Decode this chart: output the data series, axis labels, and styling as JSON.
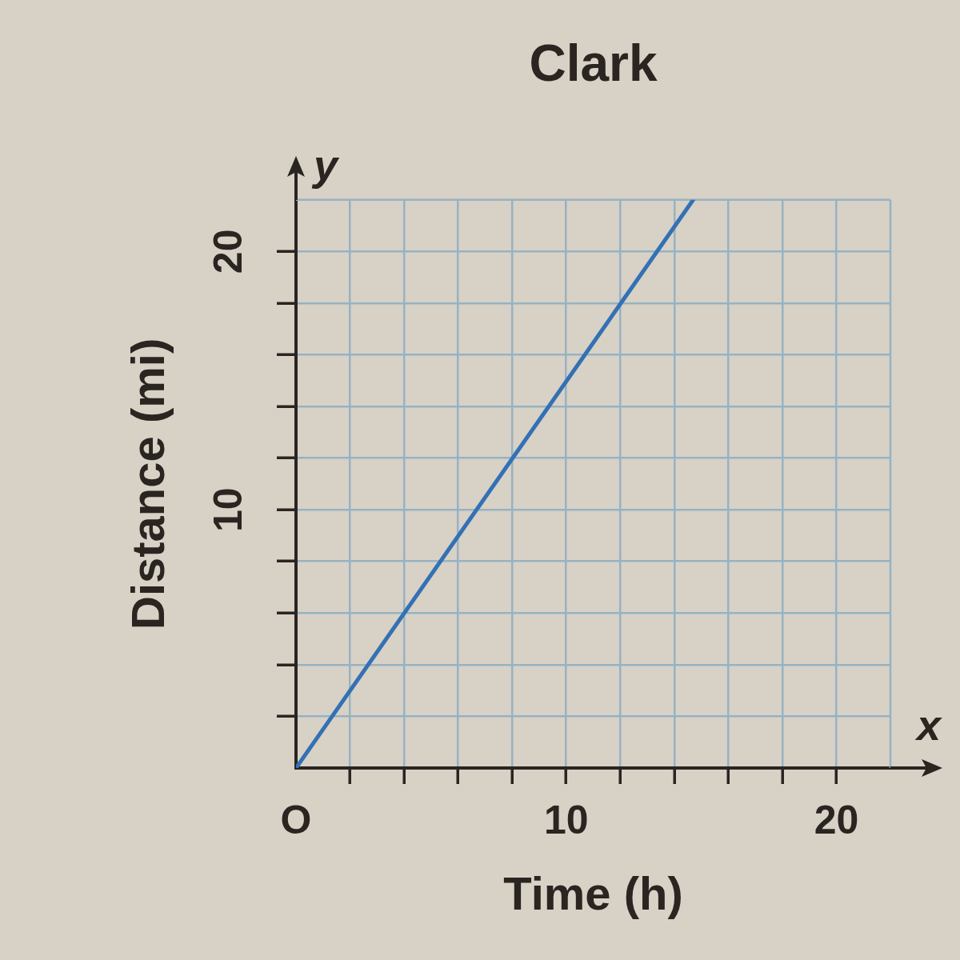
{
  "chart_data": {
    "type": "line",
    "title": "Clark",
    "xlabel": "Time (h)",
    "ylabel": "Distance (mi)",
    "x": [
      0,
      14.7
    ],
    "values": [
      0,
      22
    ],
    "color": "#3371b4",
    "xlim": [
      0,
      22
    ],
    "ylim": [
      0,
      22
    ],
    "xticks": [
      {
        "value": 0,
        "label": "O"
      },
      {
        "value": 2,
        "label": null
      },
      {
        "value": 4,
        "label": null
      },
      {
        "value": 6,
        "label": null
      },
      {
        "value": 8,
        "label": null
      },
      10,
      {
        "value": 12,
        "label": null
      },
      {
        "value": 14,
        "label": null
      },
      {
        "value": 16,
        "label": null
      },
      {
        "value": 18,
        "label": null
      },
      20
    ],
    "yticks": [
      {
        "value": 0,
        "label": null
      },
      {
        "value": 2,
        "label": null
      },
      {
        "value": 4,
        "label": null
      },
      {
        "value": 6,
        "label": null
      },
      {
        "value": 8,
        "label": null
      },
      10,
      {
        "value": 12,
        "label": null
      },
      {
        "value": 14,
        "label": null
      },
      {
        "value": 16,
        "label": null
      },
      {
        "value": 18,
        "label": null
      },
      20
    ],
    "grid": true,
    "marker": "none",
    "line_style": "solid",
    "annotations": [
      "y",
      "x"
    ]
  }
}
